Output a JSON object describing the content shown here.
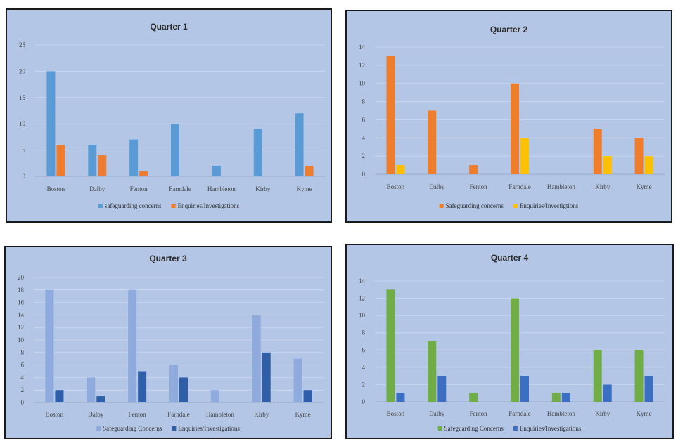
{
  "chart_data": [
    {
      "type": "bar",
      "title": "Quarter 1",
      "categories": [
        "Boston",
        "Dalby",
        "Fenton",
        "Farndale",
        "Hambleton",
        "Kirby",
        "Kyme"
      ],
      "ylim": [
        0,
        25
      ],
      "yticks": [
        0,
        5,
        10,
        15,
        20,
        25
      ],
      "grid": true,
      "legend_position": "bottom",
      "series": [
        {
          "name": "safeguarding concerns",
          "color": "#5b9bd5",
          "values": [
            20,
            6,
            7,
            10,
            2,
            9,
            12
          ]
        },
        {
          "name": "Enquiries/Investigations",
          "color": "#ed7d31",
          "values": [
            6,
            4,
            1,
            0,
            0,
            0,
            2
          ]
        }
      ]
    },
    {
      "type": "bar",
      "title": "Quarter 2",
      "categories": [
        "Boston",
        "Dalby",
        "Fenton",
        "Farndale",
        "Hambleton",
        "Kirby",
        "Kyme"
      ],
      "ylim": [
        0,
        14
      ],
      "yticks": [
        0,
        2,
        4,
        6,
        8,
        10,
        12,
        14
      ],
      "grid": true,
      "legend_position": "bottom",
      "series": [
        {
          "name": "Safeguarding concerns",
          "color": "#f07d2a",
          "values": [
            13,
            7,
            1,
            10,
            0,
            5,
            4
          ]
        },
        {
          "name": "Enquiries/Investigtions",
          "color": "#ffc000",
          "values": [
            1,
            0,
            0,
            4,
            0,
            2,
            2
          ]
        }
      ]
    },
    {
      "type": "bar",
      "title": "Quarter 3",
      "categories": [
        "Boston",
        "Dalby",
        "Fenton",
        "Farndale",
        "Hambleton",
        "Kirby",
        "Kyme"
      ],
      "ylim": [
        0,
        20
      ],
      "yticks": [
        0,
        2,
        4,
        6,
        8,
        10,
        12,
        14,
        16,
        18,
        20
      ],
      "grid": true,
      "legend_position": "bottom",
      "series": [
        {
          "name": "Safeguarding Concerns",
          "color": "#8faadc",
          "values": [
            18,
            4,
            18,
            6,
            2,
            14,
            7
          ]
        },
        {
          "name": "Enquiries/Investigations",
          "color": "#2e5fa8",
          "values": [
            2,
            1,
            5,
            4,
            0,
            8,
            2
          ]
        }
      ]
    },
    {
      "type": "bar",
      "title": "Quarter 4",
      "categories": [
        "Boston",
        "Dalby",
        "Fenton",
        "Farndale",
        "Hambleton",
        "Kirby",
        "Kyme"
      ],
      "ylim": [
        0,
        14
      ],
      "yticks": [
        0,
        2,
        4,
        6,
        8,
        10,
        12,
        14
      ],
      "grid": true,
      "legend_position": "bottom",
      "series": [
        {
          "name": "Safeguarding Concerns",
          "color": "#70ad47",
          "values": [
            13,
            7,
            1,
            12,
            1,
            6,
            6
          ]
        },
        {
          "name": "Enquiries/Investigations",
          "color": "#3a6fc4",
          "values": [
            1,
            3,
            0,
            3,
            1,
            2,
            3
          ]
        }
      ]
    }
  ]
}
